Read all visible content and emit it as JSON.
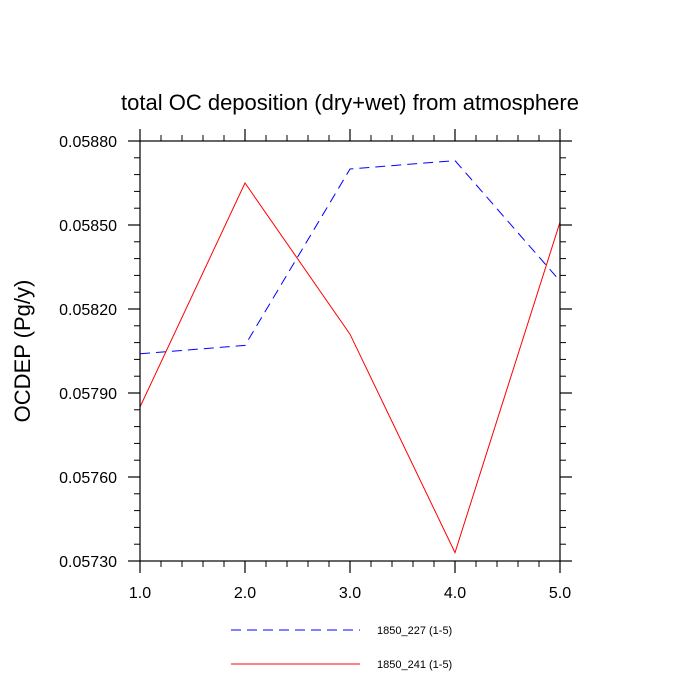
{
  "chart_data": {
    "type": "line",
    "title": "total OC deposition (dry+wet) from atmosphere",
    "xlabel": "",
    "ylabel": "OCDEP  (Pg/y)",
    "x": [
      1,
      2,
      3,
      4,
      5
    ],
    "xlim": [
      1,
      5
    ],
    "ylim": [
      0.0573,
      0.0588
    ],
    "x_ticks": [
      1,
      2,
      3,
      4,
      5
    ],
    "x_tick_labels": [
      "1.0",
      "2.0",
      "3.0",
      "4.0",
      "5.0"
    ],
    "y_ticks": [
      0.0573,
      0.0576,
      0.0579,
      0.0582,
      0.0585,
      0.0588
    ],
    "y_tick_labels": [
      "0.05730",
      "0.05760",
      "0.05790",
      "0.05820",
      "0.05850",
      "0.05880"
    ],
    "grid": false,
    "legend_position": "bottom-center",
    "series": [
      {
        "name": "1850_227 (1-5)",
        "color": "#0000ff",
        "dash": "dashed",
        "values": [
          0.05804,
          0.05807,
          0.0587,
          0.05873,
          0.0583
        ]
      },
      {
        "name": "1850_241 (1-5)",
        "color": "#ff0000",
        "dash": "solid",
        "values": [
          0.05785,
          0.05865,
          0.05811,
          0.05733,
          0.05851
        ]
      }
    ]
  }
}
